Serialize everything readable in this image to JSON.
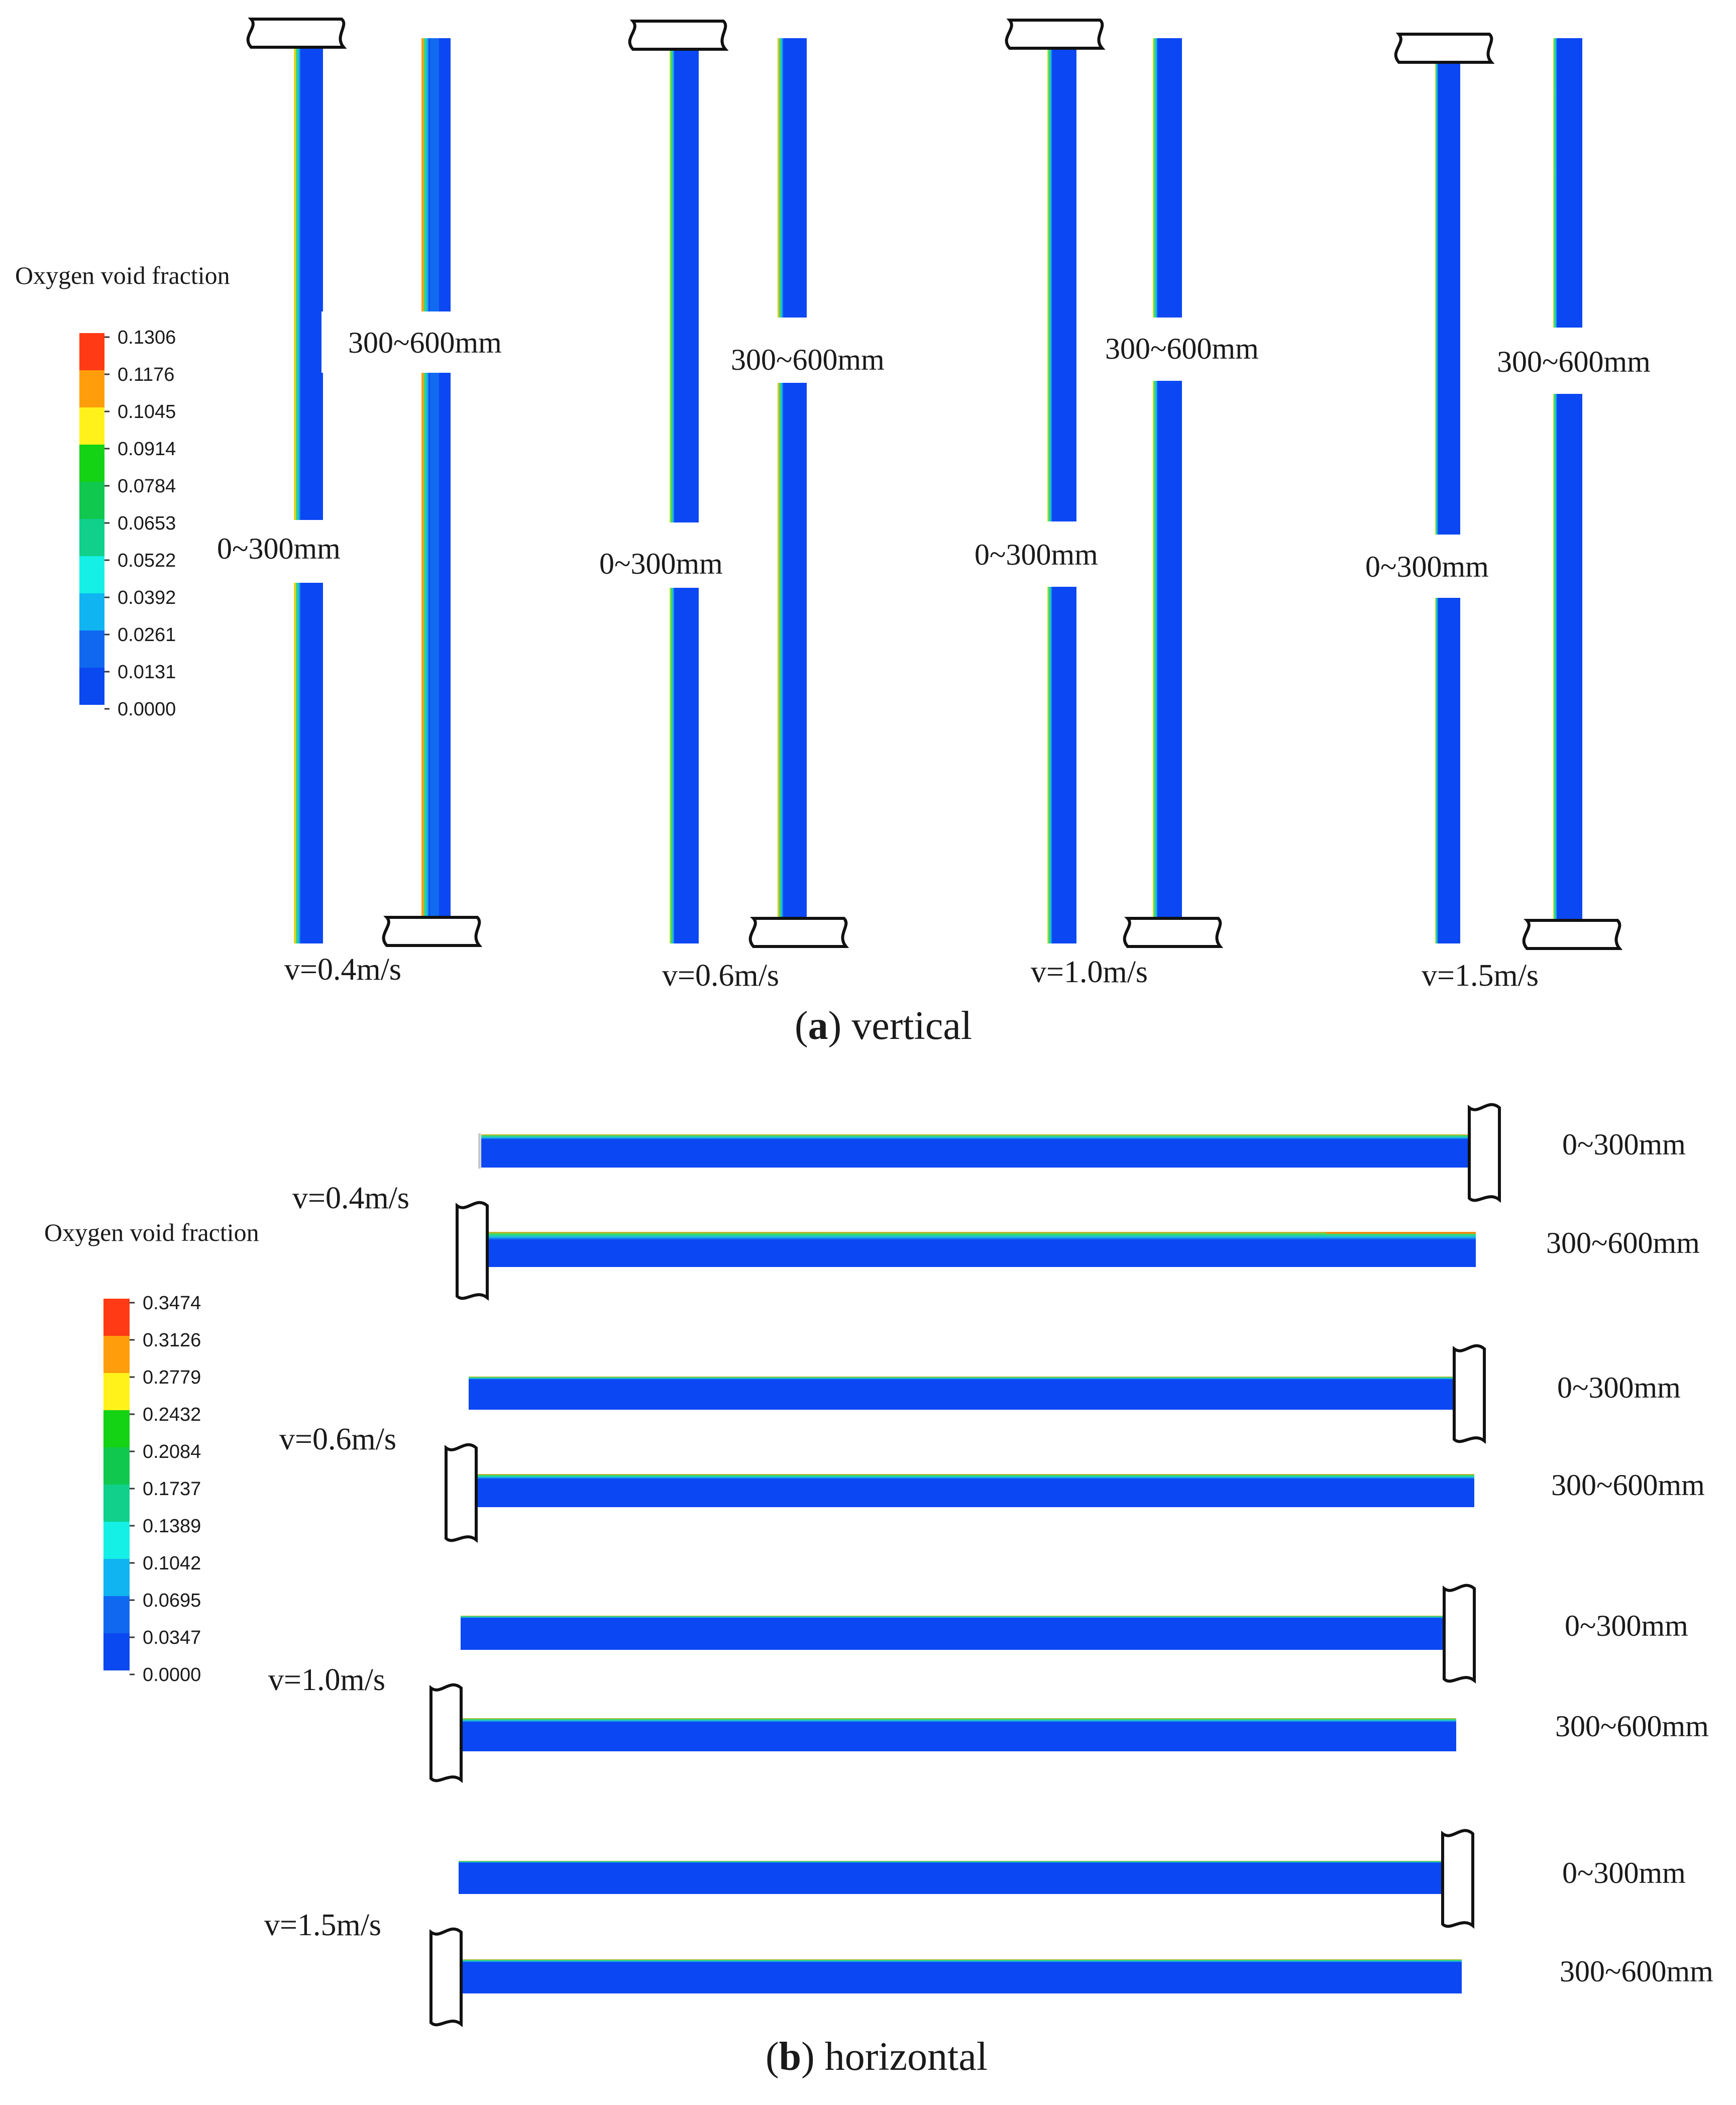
{
  "panel_a": {
    "caption_letter": "a",
    "caption_text": "vertical",
    "legend": {
      "title": "Oxygen void fraction",
      "levels": [
        "0.1306",
        "0.1176",
        "0.1045",
        "0.0914",
        "0.0784",
        "0.0653",
        "0.0522",
        "0.0392",
        "0.0261",
        "0.0131",
        "0.0000"
      ]
    },
    "cases": [
      {
        "velocity": "v=0.4m/s",
        "segment_lower": "0~300mm",
        "segment_upper": "300~600mm"
      },
      {
        "velocity": "v=0.6m/s",
        "segment_lower": "0~300mm",
        "segment_upper": "300~600mm"
      },
      {
        "velocity": "v=1.0m/s",
        "segment_lower": "0~300mm",
        "segment_upper": "300~600mm"
      },
      {
        "velocity": "v=1.5m/s",
        "segment_lower": "0~300mm",
        "segment_upper": "300~600mm"
      }
    ]
  },
  "panel_b": {
    "caption_letter": "b",
    "caption_text": "horizontal",
    "legend": {
      "title": "Oxygen void fraction",
      "levels": [
        "0.3474",
        "0.3126",
        "0.2779",
        "0.2432",
        "0.2084",
        "0.1737",
        "0.1389",
        "0.1042",
        "0.0695",
        "0.0347",
        "0.0000"
      ]
    },
    "cases": [
      {
        "velocity": "v=0.4m/s",
        "segment_lower": "0~300mm",
        "segment_upper": "300~600mm"
      },
      {
        "velocity": "v=0.6m/s",
        "segment_lower": "0~300mm",
        "segment_upper": "300~600mm"
      },
      {
        "velocity": "v=1.0m/s",
        "segment_lower": "0~300mm",
        "segment_upper": "300~600mm"
      },
      {
        "velocity": "v=1.5m/s",
        "segment_lower": "0~300mm",
        "segment_upper": "300~600mm"
      }
    ]
  },
  "colors": {
    "contour_scale": [
      "#ff3a14",
      "#ff9e0a",
      "#fff21a",
      "#14d214",
      "#10c84e",
      "#10d08c",
      "#14f0e6",
      "#10b4f0",
      "#1068f0",
      "#0a48f0"
    ],
    "pipe_core": "#0b47f2",
    "wall_film": "#26c8d8"
  }
}
